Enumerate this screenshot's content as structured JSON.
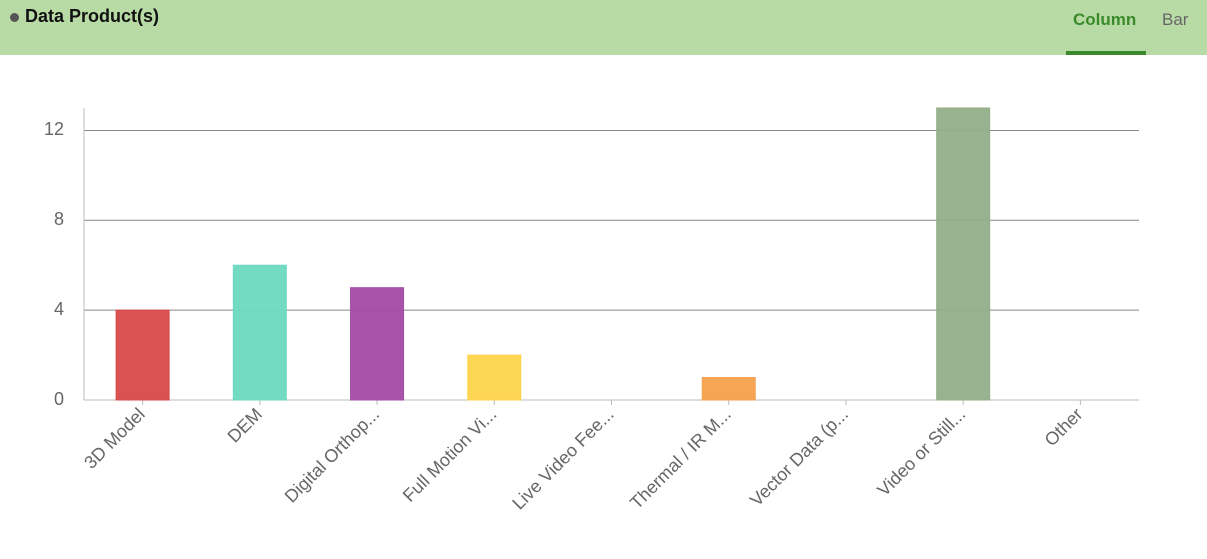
{
  "header": {
    "title": "Data Product(s)",
    "tabs": [
      "Column",
      "Bar"
    ]
  },
  "chart_data": {
    "type": "bar",
    "categories": [
      "3D Model",
      "DEM",
      "Digital Orthop...",
      "Full Motion Vi...",
      "Live Video Fee...",
      "Thermal / IR M...",
      "Vector Data (p...",
      "Video or Still...",
      "Other"
    ],
    "values": [
      4,
      6,
      5,
      2,
      0,
      1,
      0,
      13,
      0
    ],
    "colors": [
      "#d9494a",
      "#6dd9c0",
      "#a34ba6",
      "#fdd44a",
      "#999999",
      "#f5a04e",
      "#999999",
      "#93ae89",
      "#999999"
    ],
    "ylim": [
      0,
      13
    ],
    "yticks": [
      0,
      4,
      8,
      12
    ],
    "grid": true
  }
}
